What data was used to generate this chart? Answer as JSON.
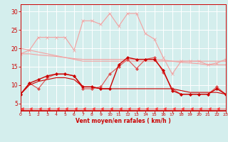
{
  "x": [
    0,
    1,
    2,
    3,
    4,
    5,
    6,
    7,
    8,
    9,
    10,
    11,
    12,
    13,
    14,
    15,
    16,
    17,
    18,
    19,
    20,
    21,
    22,
    23
  ],
  "series": [
    {
      "name": "line1_light_marker",
      "color": "#f4a0a0",
      "linewidth": 0.8,
      "marker": "x",
      "markersize": 2.5,
      "y": [
        18.5,
        19.5,
        23,
        23,
        23,
        23,
        19.5,
        27.5,
        27.5,
        26.5,
        29.5,
        26,
        29.5,
        29.5,
        24,
        22.5,
        17.5,
        13,
        16.5,
        16.5,
        16.5,
        15.5,
        16,
        17
      ]
    },
    {
      "name": "line2_light_plain",
      "color": "#f4a0a0",
      "linewidth": 0.8,
      "marker": null,
      "markersize": 0,
      "y": [
        18.5,
        18.5,
        18.2,
        18.0,
        17.8,
        17.5,
        17.2,
        17.0,
        17.0,
        17.0,
        17.0,
        17.0,
        17.0,
        17.0,
        17.0,
        17.0,
        16.8,
        16.5,
        16.2,
        16.0,
        15.8,
        15.5,
        15.5,
        15.5
      ]
    },
    {
      "name": "line3_light_plain2",
      "color": "#f4a0a0",
      "linewidth": 0.8,
      "marker": null,
      "markersize": 0,
      "y": [
        20.0,
        19.5,
        19.0,
        18.5,
        18.0,
        17.5,
        17.0,
        16.5,
        16.5,
        16.5,
        16.5,
        16.5,
        16.5,
        16.5,
        16.5,
        16.5,
        16.5,
        16.5,
        16.5,
        16.5,
        16.5,
        16.5,
        16.5,
        16.5
      ]
    },
    {
      "name": "line4_med_marker",
      "color": "#e05050",
      "linewidth": 0.8,
      "marker": "D",
      "markersize": 2.0,
      "y": [
        7.5,
        10.5,
        9.0,
        12.0,
        13.0,
        13.0,
        12.5,
        9.0,
        9.0,
        9.5,
        13.0,
        15.0,
        17.0,
        14.5,
        17.0,
        17.5,
        13.5,
        9.0,
        7.5,
        7.5,
        7.5,
        7.5,
        9.5,
        7.5
      ]
    },
    {
      "name": "line5_dark_marker",
      "color": "#cc0000",
      "linewidth": 1.0,
      "marker": "D",
      "markersize": 2.0,
      "y": [
        7.5,
        10.5,
        11.5,
        12.5,
        13.0,
        13.0,
        12.5,
        9.5,
        9.5,
        9.0,
        9.0,
        15.5,
        17.5,
        17.0,
        17.0,
        17.0,
        14.0,
        8.5,
        7.5,
        7.5,
        7.5,
        7.5,
        9.0,
        7.5
      ]
    },
    {
      "name": "line6_dark_plain",
      "color": "#cc0000",
      "linewidth": 0.8,
      "marker": null,
      "markersize": 0,
      "y": [
        7.5,
        10.0,
        11.0,
        11.5,
        12.0,
        12.0,
        11.5,
        9.5,
        9.5,
        9.0,
        9.0,
        9.0,
        9.0,
        9.0,
        9.0,
        9.0,
        9.0,
        9.0,
        8.5,
        8.0,
        8.0,
        8.0,
        8.0,
        7.5
      ]
    },
    {
      "name": "line7_arrows",
      "color": "#ff3333",
      "linewidth": 0.5,
      "marker": 4,
      "markersize": 3.5,
      "y": [
        3.5,
        3.5,
        3.5,
        3.5,
        3.5,
        3.5,
        3.5,
        3.5,
        3.5,
        3.5,
        3.5,
        3.5,
        3.5,
        3.5,
        3.5,
        3.5,
        3.5,
        3.5,
        3.5,
        3.5,
        3.5,
        3.5,
        3.5,
        3.5
      ]
    }
  ],
  "xlabel": "Vent moyen/en rafales ( km/h )",
  "xlim": [
    0,
    23
  ],
  "ylim": [
    3,
    32
  ],
  "yticks": [
    5,
    10,
    15,
    20,
    25,
    30
  ],
  "xticks": [
    0,
    1,
    2,
    3,
    4,
    5,
    6,
    7,
    8,
    9,
    10,
    11,
    12,
    13,
    14,
    15,
    16,
    17,
    18,
    19,
    20,
    21,
    22,
    23
  ],
  "background_color": "#d4eeed",
  "grid_color": "#ffffff",
  "xlabel_color": "#cc0000",
  "tick_color": "#cc0000",
  "axis_color": "#cc0000",
  "bottom_line_color": "#cc0000"
}
